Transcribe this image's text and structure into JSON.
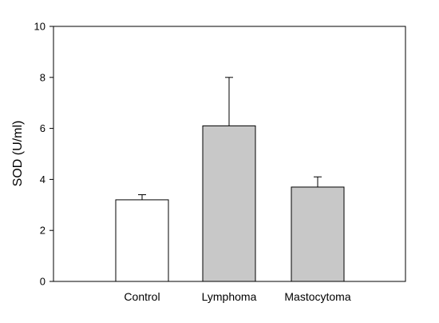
{
  "chart_data": {
    "type": "bar",
    "categories": [
      "Control",
      "Lymphoma",
      "Mastocytoma"
    ],
    "values": [
      3.2,
      6.1,
      3.7
    ],
    "error_upper": [
      0.2,
      1.9,
      0.4
    ],
    "bar_colors": [
      "#ffffff",
      "#c8c8c8",
      "#c8c8c8"
    ],
    "ylabel": "SOD (U/ml)",
    "xlabel": "",
    "ylim": [
      0,
      10
    ],
    "yticks": [
      0,
      2,
      4,
      6,
      8,
      10
    ],
    "ytick_labels": [
      "0",
      "2",
      "4",
      "6",
      "8",
      "10"
    ],
    "grid": false,
    "legend": "none"
  }
}
